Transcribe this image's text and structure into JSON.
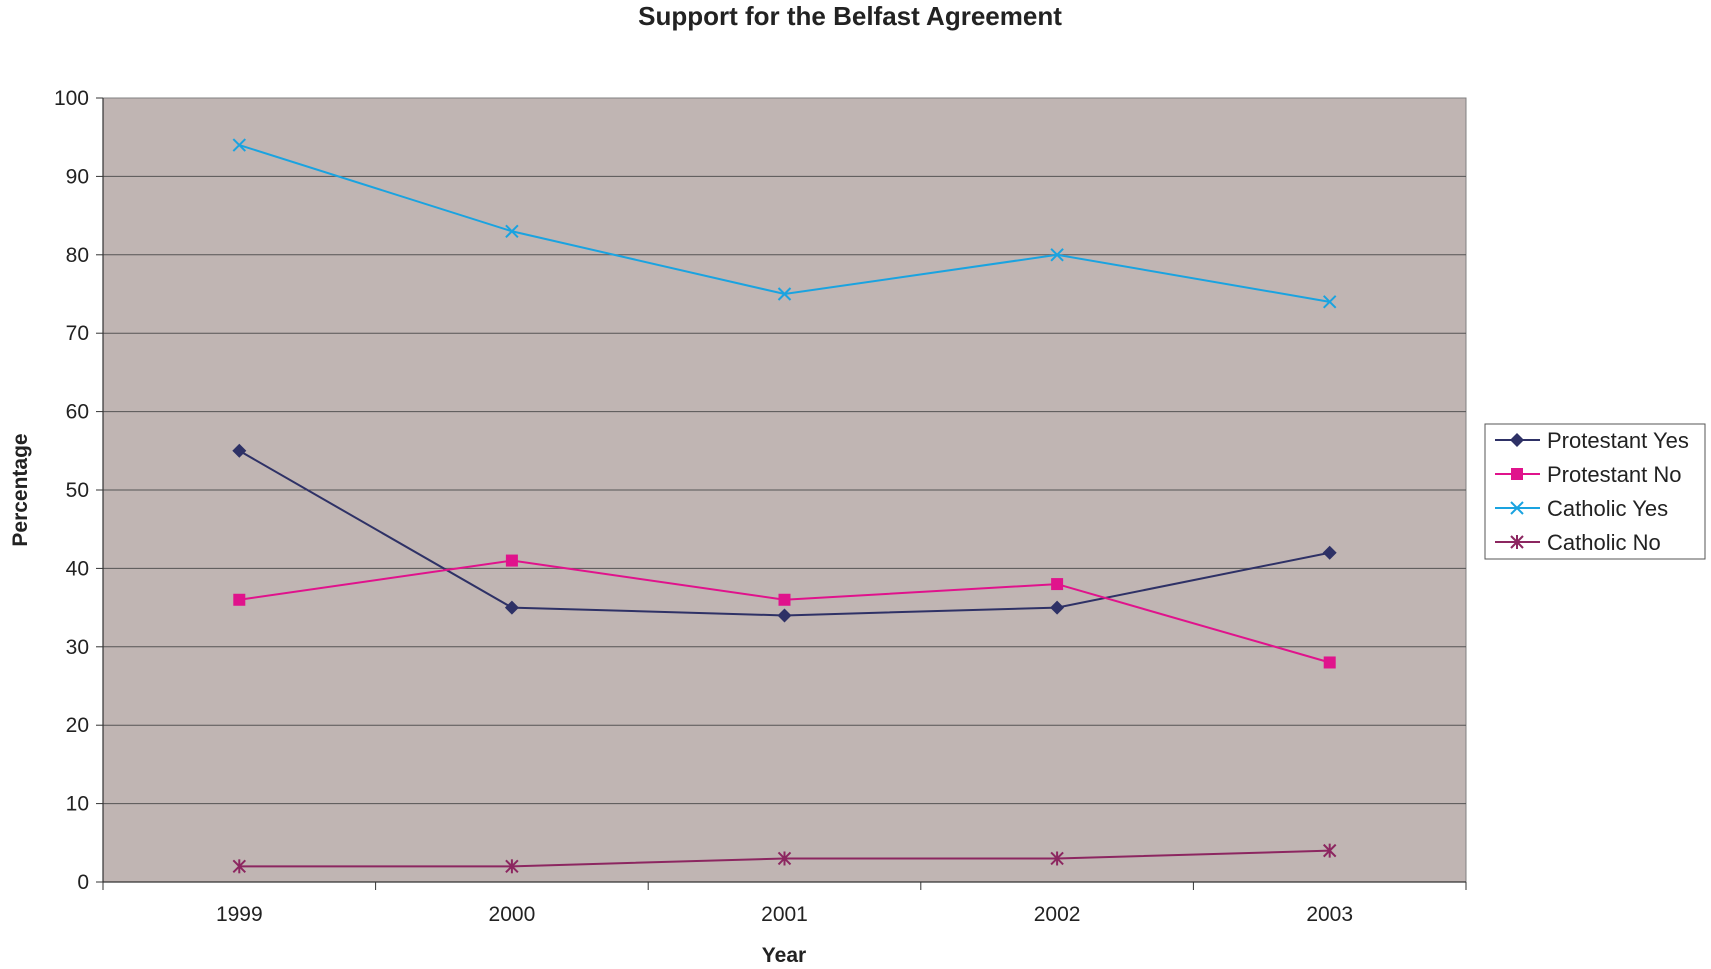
{
  "chart_data": {
    "type": "line",
    "title": "Support for the Belfast Agreement",
    "xlabel": "Year",
    "ylabel": "Percentage",
    "categories": [
      "1999",
      "2000",
      "2001",
      "2002",
      "2003"
    ],
    "ylim": [
      0,
      100
    ],
    "yticks": [
      "0",
      "10",
      "20",
      "30",
      "40",
      "50",
      "60",
      "70",
      "80",
      "90",
      "100"
    ],
    "grid": "horizontal",
    "legend_position": "right",
    "plot_background": "#c0b5b3",
    "series": [
      {
        "name": "Protestant Yes",
        "color": "#2e3166",
        "marker": "diamond",
        "values": [
          55,
          35,
          34,
          35,
          42
        ]
      },
      {
        "name": "Protestant No",
        "color": "#e0138c",
        "marker": "square",
        "values": [
          36,
          41,
          36,
          38,
          28
        ]
      },
      {
        "name": "Catholic Yes",
        "color": "#1aa3e0",
        "marker": "x",
        "values": [
          94,
          83,
          75,
          80,
          74
        ]
      },
      {
        "name": "Catholic No",
        "color": "#8c2660",
        "marker": "star",
        "values": [
          2,
          2,
          3,
          3,
          4
        ]
      }
    ]
  }
}
